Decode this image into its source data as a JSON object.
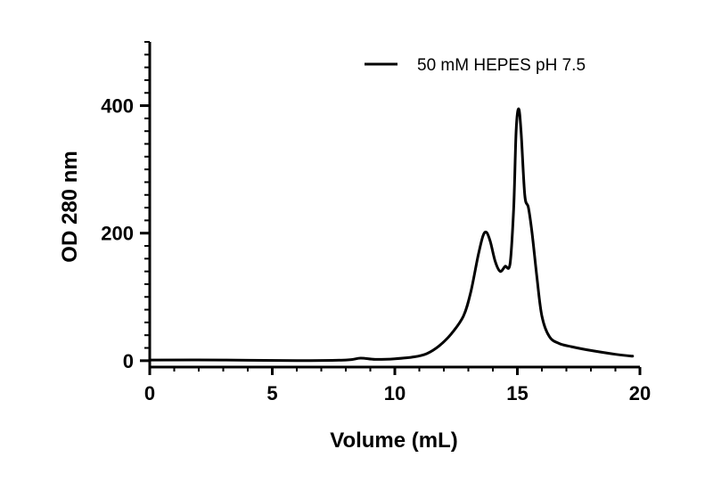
{
  "chart_data": {
    "type": "line",
    "xlabel": "Volume (mL)",
    "ylabel": "OD 280 nm",
    "xlim": [
      0,
      20
    ],
    "ylim": [
      -10,
      500
    ],
    "x_ticks": [
      "0",
      "5",
      "10",
      "15",
      "20"
    ],
    "y_ticks": [
      "0",
      "200",
      "400"
    ],
    "grid": false,
    "legend_position": "top-right",
    "series": [
      {
        "name": "50 mM HEPES pH 7.5",
        "color": "#000000",
        "x": [
          0,
          3,
          6,
          8,
          8.6,
          9.2,
          10,
          10.8,
          11.3,
          11.8,
          12.3,
          12.8,
          13.1,
          13.4,
          13.6,
          13.75,
          13.9,
          14.1,
          14.3,
          14.5,
          14.7,
          14.85,
          14.95,
          15.05,
          15.15,
          15.3,
          15.45,
          15.6,
          15.8,
          16,
          16.3,
          16.7,
          17.2,
          18,
          19,
          19.7
        ],
        "y": [
          1,
          1,
          0,
          1,
          4,
          2,
          3,
          6,
          11,
          23,
          42,
          70,
          108,
          165,
          196,
          201,
          186,
          155,
          140,
          148,
          152,
          240,
          360,
          395,
          360,
          260,
          240,
          200,
          130,
          70,
          38,
          27,
          22,
          16,
          10,
          7
        ]
      }
    ]
  }
}
